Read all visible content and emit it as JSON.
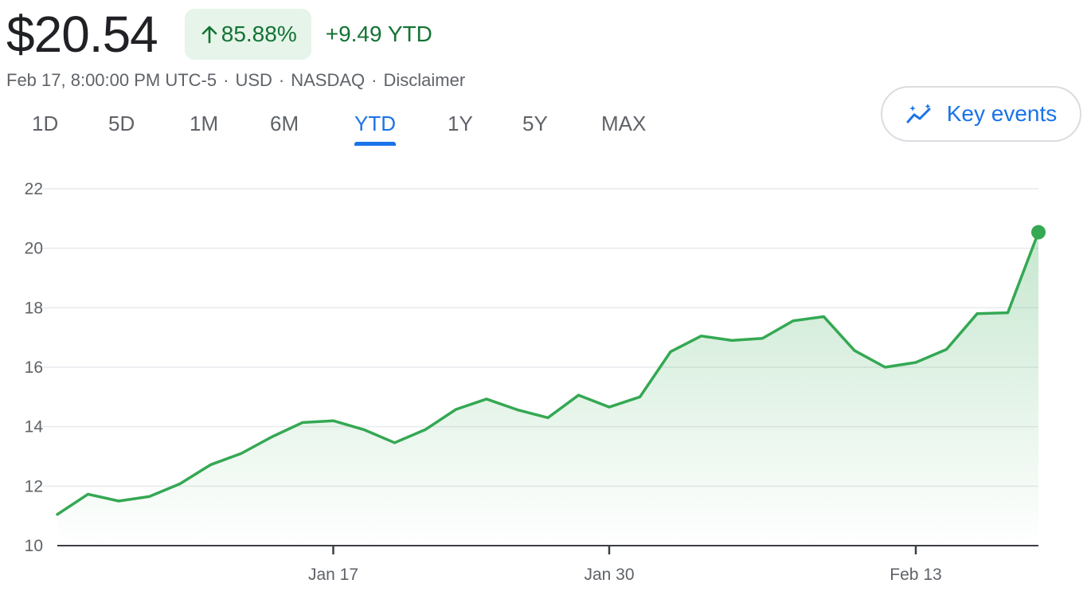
{
  "header": {
    "price": "$20.54",
    "percent_change": "85.88%",
    "abs_change": "+9.49 YTD"
  },
  "meta": {
    "timestamp": "Feb 17, 8:00:00 PM UTC-5",
    "currency": "USD",
    "exchange": "NASDAQ",
    "disclaimer": "Disclaimer",
    "separator": "·"
  },
  "ranges": {
    "items": [
      "1D",
      "5D",
      "1M",
      "6M",
      "YTD",
      "1Y",
      "5Y",
      "MAX"
    ],
    "active": "YTD"
  },
  "key_events": {
    "label": "Key events",
    "icon": "sparkle-trend-icon"
  },
  "icons": {
    "up_arrow": "arrow-up-icon"
  },
  "colors": {
    "positive": "#137333",
    "positive_bg": "#e6f4ea",
    "line": "#34a853",
    "accent": "#1a73e8",
    "muted_text": "#5f6368",
    "grid": "#e8eaed",
    "axis": "#3c4043"
  },
  "chart_data": {
    "type": "area",
    "xlabel": "",
    "ylabel": "",
    "ylim": [
      10,
      22
    ],
    "yticks": [
      10,
      12,
      14,
      16,
      18,
      20,
      22
    ],
    "xtick_labels": [
      "Jan 17",
      "Jan 30",
      "Feb 13"
    ],
    "xtick_index": [
      9,
      18,
      28
    ],
    "grid": true,
    "x": [
      "Jan 3",
      "Jan 4",
      "Jan 5",
      "Jan 6",
      "Jan 9",
      "Jan 10",
      "Jan 11",
      "Jan 12",
      "Jan 13",
      "Jan 17",
      "Jan 18",
      "Jan 19",
      "Jan 20",
      "Jan 23",
      "Jan 24",
      "Jan 25",
      "Jan 26",
      "Jan 27",
      "Jan 30",
      "Jan 31",
      "Feb 1",
      "Feb 2",
      "Feb 3",
      "Feb 6",
      "Feb 7",
      "Feb 8",
      "Feb 9",
      "Feb 10",
      "Feb 13",
      "Feb 14",
      "Feb 15",
      "Feb 16",
      "Feb 17"
    ],
    "series": [
      {
        "values": [
          11.05,
          11.73,
          11.5,
          11.65,
          12.08,
          12.72,
          13.1,
          13.66,
          14.14,
          14.2,
          13.9,
          13.46,
          13.9,
          14.58,
          14.93,
          14.57,
          14.3,
          15.06,
          14.66,
          15.0,
          16.52,
          17.05,
          16.9,
          16.97,
          17.56,
          17.7,
          16.56,
          16.0,
          16.16,
          16.6,
          17.8,
          17.83,
          20.54
        ]
      }
    ]
  }
}
